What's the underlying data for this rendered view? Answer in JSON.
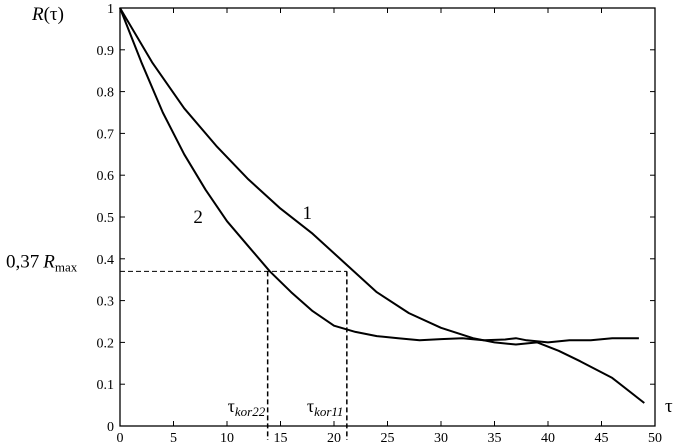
{
  "chart_data": {
    "type": "line",
    "title": "",
    "ylabel": "R(τ)",
    "xlabel": "τ",
    "xlim": [
      0,
      50
    ],
    "ylim": [
      0,
      1
    ],
    "xticks": [
      0,
      5,
      10,
      15,
      20,
      25,
      30,
      35,
      40,
      45,
      50
    ],
    "yticks": [
      0,
      0.1,
      0.2,
      0.3,
      0.4,
      0.5,
      0.6,
      0.7,
      0.8,
      0.9,
      1
    ],
    "ytick_labels": [
      "0",
      "0.1",
      "0.2",
      "0.3",
      "0.4",
      "0.5",
      "0.6",
      "0.7",
      "0.8",
      "0.9",
      "1"
    ],
    "grid": false,
    "series": [
      {
        "name": "1",
        "x": [
          0,
          3,
          6,
          9,
          12,
          15,
          18,
          21,
          24,
          27,
          30,
          33,
          35,
          37,
          39,
          41,
          43,
          46,
          49
        ],
        "y": [
          1.0,
          0.87,
          0.76,
          0.67,
          0.59,
          0.52,
          0.46,
          0.39,
          0.32,
          0.27,
          0.235,
          0.21,
          0.2,
          0.195,
          0.2,
          0.18,
          0.155,
          0.115,
          0.055
        ]
      },
      {
        "name": "2",
        "x": [
          0,
          2,
          4,
          6,
          8,
          10,
          12,
          14,
          16,
          18,
          20,
          22,
          24,
          26,
          28,
          30,
          32,
          34,
          36,
          37,
          38,
          40,
          42,
          44,
          46,
          48.5
        ],
        "y": [
          1.0,
          0.87,
          0.75,
          0.65,
          0.565,
          0.49,
          0.43,
          0.37,
          0.32,
          0.275,
          0.24,
          0.225,
          0.215,
          0.21,
          0.205,
          0.208,
          0.21,
          0.205,
          0.207,
          0.21,
          0.205,
          0.2,
          0.205,
          0.205,
          0.21,
          0.21
        ]
      }
    ],
    "threshold": {
      "value": 0.37,
      "label_prefix": "0,37",
      "label_var": "R",
      "label_sub": "max"
    },
    "annotations": [
      {
        "text": "τ",
        "sub": "kor22",
        "x": 13.8
      },
      {
        "text": "τ",
        "sub": "kor11",
        "x": 21.2
      }
    ],
    "curve_labels": [
      {
        "text": "2",
        "x": 7.3,
        "y": 0.5
      },
      {
        "text": "1",
        "x": 17.5,
        "y": 0.51
      }
    ]
  }
}
